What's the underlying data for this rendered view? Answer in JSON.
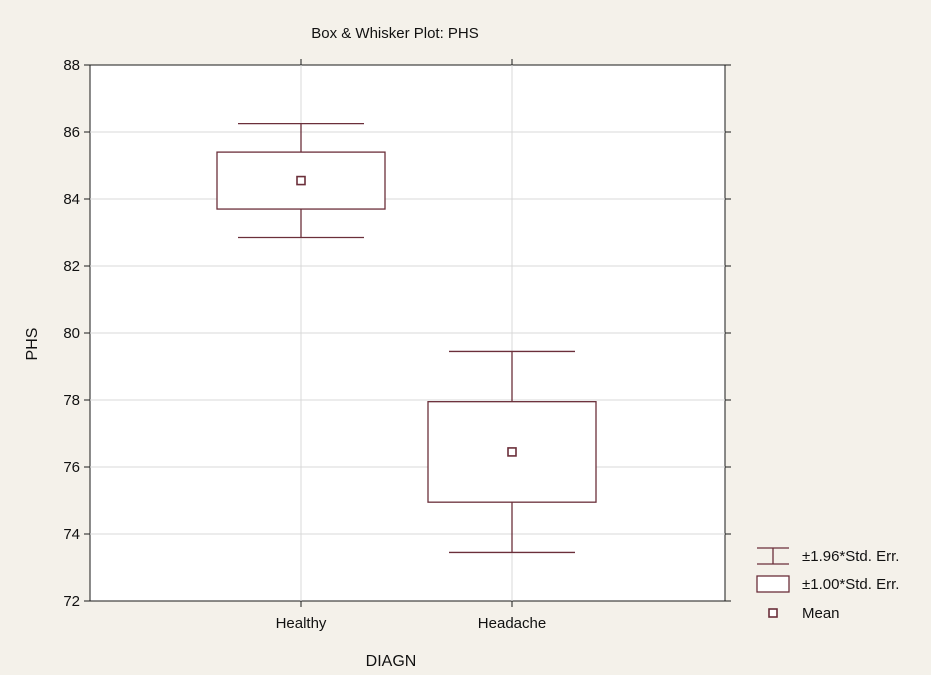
{
  "colors": {
    "background": "#f4f1ea",
    "plot_area": "#ffffff",
    "frame": "#1a1a1a",
    "grid": "#d9d9d9",
    "series": "#6b2f3a"
  },
  "chart_data": {
    "type": "box",
    "title": "Box & Whisker Plot: PHS",
    "xlabel": "DIAGN",
    "ylabel": "PHS",
    "ylim": [
      72,
      88
    ],
    "yticks": [
      72,
      74,
      76,
      78,
      80,
      82,
      84,
      86,
      88
    ],
    "grid": true,
    "legend_position": "bottom-right",
    "categories": [
      "Healthy",
      "Headache"
    ],
    "boxes": [
      {
        "category": "Healthy",
        "mean": 84.55,
        "box_low": 83.7,
        "box_high": 85.4,
        "whisker_low": 82.85,
        "whisker_high": 86.25
      },
      {
        "category": "Headache",
        "mean": 76.45,
        "box_low": 74.95,
        "box_high": 77.95,
        "whisker_low": 73.45,
        "whisker_high": 79.45
      }
    ],
    "legend": [
      {
        "symbol": "whisker",
        "label": "±1.96*Std. Err."
      },
      {
        "symbol": "box",
        "label": "±1.00*Std. Err."
      },
      {
        "symbol": "mean",
        "label": "Mean"
      }
    ]
  }
}
